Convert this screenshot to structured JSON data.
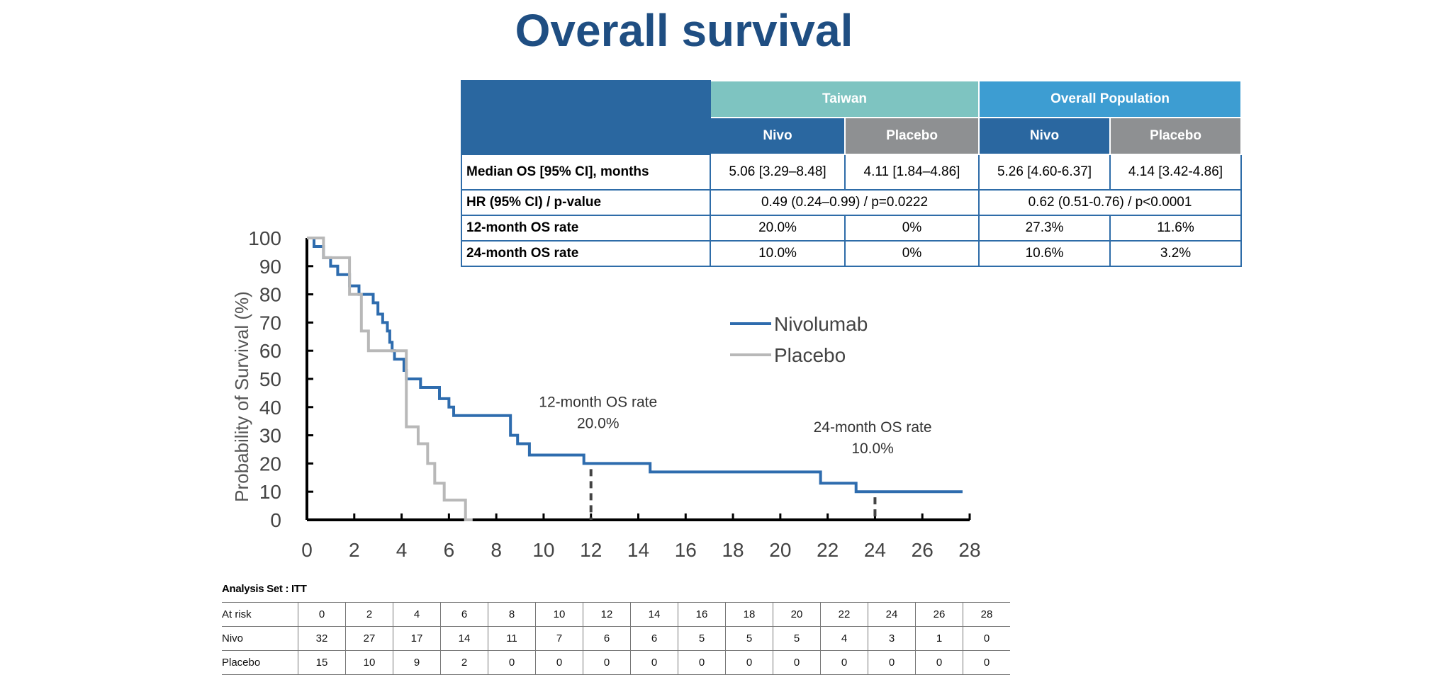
{
  "title": "Overall survival",
  "results_table": {
    "groups": [
      "Taiwan",
      "Overall Population"
    ],
    "arms": [
      "Nivo",
      "Placebo",
      "Nivo",
      "Placebo"
    ],
    "rows": [
      {
        "label": "Median OS [95% CI], months",
        "values": [
          "5.06 [3.29–8.48]",
          "4.11 [1.84–4.86]",
          "5.26 [4.60-6.37]",
          "4.14 [3.42-4.86]"
        ]
      },
      {
        "label": "HR (95% CI) / p-value",
        "taiwan": "0.49 (0.24–0.99) / p=0.0222",
        "overall": "0.62 (0.51-0.76) / p<0.0001"
      },
      {
        "label": "12-month OS rate",
        "values": [
          "20.0%",
          "0%",
          "27.3%",
          "11.6%"
        ]
      },
      {
        "label": "24-month OS rate",
        "values": [
          "10.0%",
          "0%",
          "10.6%",
          "3.2%"
        ]
      }
    ]
  },
  "colors": {
    "nivolumab": "#2e6cae",
    "placebo": "#b8b8b8",
    "title": "#1f4e82"
  },
  "chart_data": {
    "type": "line",
    "step": true,
    "ylabel": "Probability of Survival (%)",
    "xlabel": "",
    "xlim": [
      0,
      28
    ],
    "ylim": [
      0,
      100
    ],
    "xticks": [
      "0",
      "2",
      "4",
      "6",
      "8",
      "10",
      "12",
      "14",
      "16",
      "18",
      "20",
      "22",
      "24",
      "26",
      "28"
    ],
    "yticks": [
      "0",
      "10",
      "20",
      "30",
      "40",
      "50",
      "60",
      "70",
      "80",
      "90",
      "100"
    ],
    "legend": {
      "position": "right",
      "entries": [
        "Nivolumab",
        "Placebo"
      ]
    },
    "series": [
      {
        "name": "Nivolumab",
        "x": [
          0,
          0.3,
          0.7,
          1.0,
          1.3,
          1.8,
          2.2,
          2.8,
          3.0,
          3.2,
          3.4,
          3.5,
          3.6,
          3.7,
          4.1,
          4.2,
          4.8,
          5.6,
          6.0,
          6.2,
          6.6,
          8.6,
          8.9,
          9.4,
          11.7,
          14.5,
          21.7,
          23.2,
          27.7
        ],
        "y": [
          100,
          97,
          93,
          90,
          87,
          83,
          80,
          77,
          73,
          70,
          67,
          63,
          60,
          57,
          53,
          50,
          47,
          43,
          40,
          37,
          37,
          30,
          27,
          23,
          20,
          17,
          13,
          10,
          10
        ]
      },
      {
        "name": "Placebo",
        "x": [
          0,
          0.7,
          1.8,
          2.3,
          2.6,
          4.0,
          4.2,
          4.7,
          5.1,
          5.4,
          5.8,
          6.7,
          7.0
        ],
        "y": [
          100,
          93,
          80,
          67,
          60,
          60,
          33,
          27,
          20,
          13,
          7,
          0,
          0
        ]
      }
    ],
    "annotations": [
      {
        "text": [
          "12-month OS rate",
          "20.0%"
        ],
        "x": 12,
        "y": 20
      },
      {
        "text": [
          "24-month OS rate",
          "10.0%"
        ],
        "x": 24,
        "y": 10
      }
    ]
  },
  "risk_table": {
    "caption": "Analysis Set : ITT",
    "header_label": "At risk",
    "times": [
      "0",
      "2",
      "4",
      "6",
      "8",
      "10",
      "12",
      "14",
      "16",
      "18",
      "20",
      "22",
      "24",
      "26",
      "28"
    ],
    "rows": [
      {
        "label": "Nivo",
        "values": [
          "32",
          "27",
          "17",
          "14",
          "11",
          "7",
          "6",
          "6",
          "5",
          "5",
          "5",
          "4",
          "3",
          "1",
          "0"
        ]
      },
      {
        "label": "Placebo",
        "values": [
          "15",
          "10",
          "9",
          "2",
          "0",
          "0",
          "0",
          "0",
          "0",
          "0",
          "0",
          "0",
          "0",
          "0",
          "0"
        ]
      }
    ]
  }
}
